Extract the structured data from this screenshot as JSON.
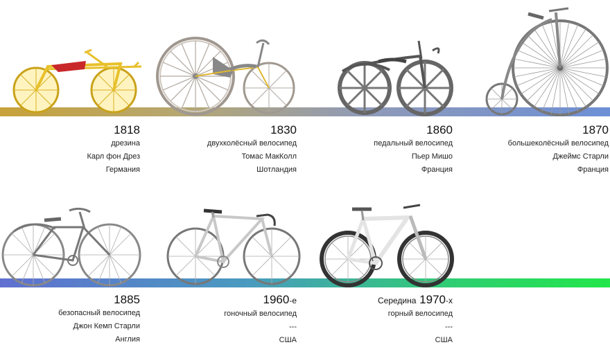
{
  "bikes": [
    {
      "year": "1818",
      "type": "дрезина",
      "inventor": "Карл фон Дрез",
      "country": "Германия"
    },
    {
      "year": "1830",
      "type": "двухколёсный велосипед",
      "inventor": "Томас МакКолл",
      "country": "Шотландия"
    },
    {
      "year": "1860",
      "type": "педальный велосипед",
      "inventor": "Пьер Мишо",
      "country": "Франция"
    },
    {
      "year": "1870",
      "type": "большеколёсный велосипед",
      "inventor": "Джеймс Старли",
      "country": "Франция"
    },
    {
      "year": "1885",
      "type": "безопасный велосипед",
      "inventor": "Джон Кемп Старли",
      "country": "Англия"
    },
    {
      "year": "1960",
      "year_suffix": "-е",
      "type": "гоночный велосипед",
      "inventor": "---",
      "country": "США"
    },
    {
      "year_prefix": "Середина",
      "year": "1970",
      "year_suffix": "-х",
      "type": "горный велосипед",
      "inventor": "---",
      "country": "США"
    }
  ],
  "colors": {
    "draisine": "#e8c02a",
    "wood": "#8a8a8a",
    "metal": "#9a9a9a",
    "modern": "#d8d8d8",
    "mtb": "#ececec"
  }
}
